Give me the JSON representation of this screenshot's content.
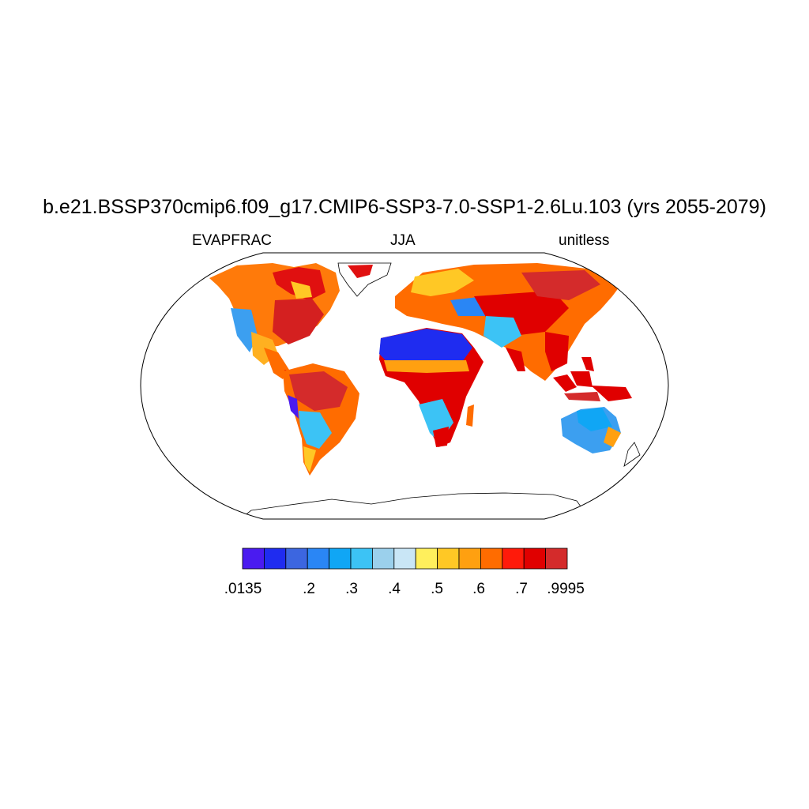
{
  "title": "b.e21.BSSP370cmip6.f09_g17.CMIP6-SSP3-7.0-SSP1-2.6Lu.103 (yrs 2055-2079)",
  "subtitle_left": "EVAPFRAC",
  "subtitle_center": "JJA",
  "subtitle_right": "unitless",
  "colorbar": {
    "colors": [
      "#4a1bf0",
      "#1f2cf0",
      "#3c66e0",
      "#2a86f5",
      "#10a6f5",
      "#3cc3f5",
      "#9bd0ec",
      "#c9e6f6",
      "#ffef5c",
      "#ffc825",
      "#ffa010",
      "#ff6c00",
      "#ff1a0a",
      "#e00000",
      "#d42b2b"
    ],
    "labels": [
      ".0135",
      ".2",
      ".3",
      ".4",
      ".5",
      ".6",
      ".7",
      ".9995"
    ]
  }
}
